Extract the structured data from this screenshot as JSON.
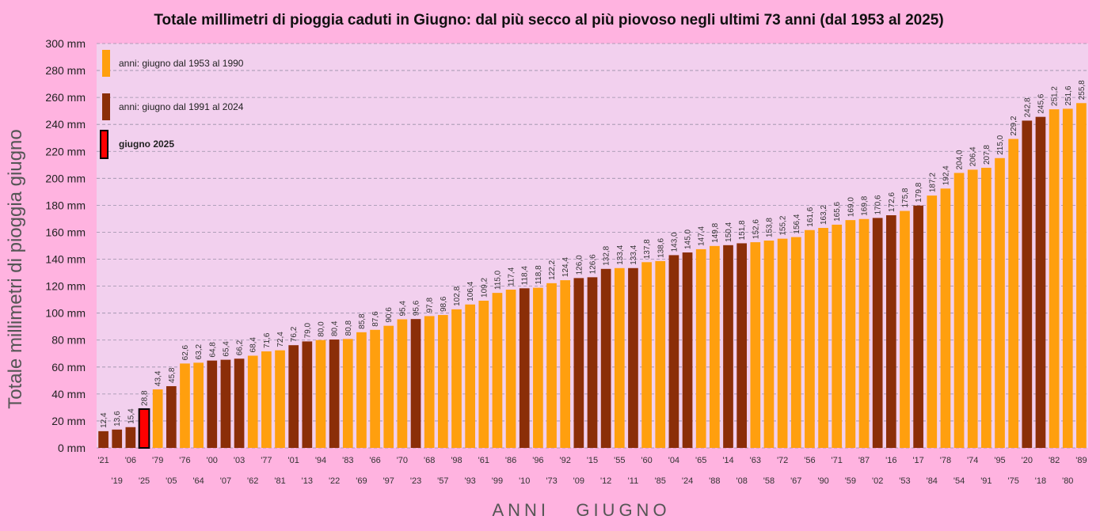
{
  "colors": {
    "page_bg": "#ffb3e0",
    "plot_bg": "#f2d0ee",
    "grid": "#9a8fa8",
    "period_1953_1990": "#ff9f0e",
    "period_1991_2024": "#8b2e08",
    "year_2025_fill": "#ff0000",
    "year_2025_border": "#000000"
  },
  "legend": [
    {
      "key": "period_1953_1990",
      "label": "anni:  giugno  dal 1953 al 1990",
      "bold": false
    },
    {
      "key": "period_1991_2024",
      "label": "anni:  giugno  dal 1991 al 2024",
      "bold": false
    },
    {
      "key": "year_2025",
      "label": "giugno 2025",
      "bold": true
    }
  ],
  "chart_data": {
    "type": "bar",
    "title": "Totale millimetri di pioggia caduti in Giugno: dal più secco al più piovoso negli ultimi 73 anni   (dal 1953 al 2025)",
    "xlabel": "ANNI   GIUGNO",
    "ylabel": "Totale  millimetri  di  pioggia  giugno",
    "ylim": [
      0,
      300
    ],
    "y_ticks": [
      "0 mm",
      "20 mm",
      "40 mm",
      "60 mm",
      "80 mm",
      "100 mm",
      "120 mm",
      "140 mm",
      "160 mm",
      "180 mm",
      "200 mm",
      "220 mm",
      "240 mm",
      "260 mm",
      "280 mm",
      "300 mm"
    ],
    "grid": true,
    "legend_position": "top-left",
    "categories": [
      "'21",
      "'19",
      "'06",
      "'25",
      "'79",
      "'05",
      "'76",
      "'64",
      "'00",
      "'07",
      "'03",
      "'62",
      "'77",
      "'81",
      "'01",
      "'13",
      "'94",
      "'22",
      "'83",
      "'69",
      "'66",
      "'97",
      "'70",
      "'23",
      "'68",
      "'57",
      "'98",
      "'93",
      "'61",
      "'99",
      "'86",
      "'10",
      "'96",
      "'73",
      "'92",
      "'09",
      "'15",
      "'12",
      "'55",
      "'11",
      "'60",
      "'85",
      "'04",
      "'24",
      "'65",
      "'88",
      "'14",
      "'08",
      "'63",
      "'58",
      "'72",
      "'67",
      "'56",
      "'90",
      "'71",
      "'59",
      "'87",
      "'02",
      "'16",
      "'53",
      "'17",
      "'84",
      "'78",
      "'54",
      "'74",
      "'91",
      "'95",
      "'75",
      "'20",
      "'18",
      "'82",
      "'80",
      "'89"
    ],
    "values": [
      12.4,
      13.6,
      15.4,
      28.8,
      43.4,
      45.8,
      62.6,
      63.2,
      64.8,
      65.4,
      66.2,
      68.4,
      71.6,
      72.4,
      76.2,
      79.0,
      80.0,
      80.4,
      80.8,
      85.8,
      87.6,
      90.6,
      95.4,
      95.6,
      97.8,
      98.6,
      102.8,
      106.4,
      109.2,
      115.0,
      117.4,
      118.4,
      118.8,
      122.2,
      124.4,
      126.0,
      126.6,
      132.8,
      133.4,
      133.4,
      137.8,
      138.6,
      143.0,
      145.0,
      147.4,
      149.8,
      150.4,
      151.8,
      152.6,
      153.8,
      155.2,
      156.4,
      161.6,
      163.2,
      165.6,
      169.0,
      169.8,
      170.6,
      172.6,
      175.8,
      179.8,
      187.2,
      192.4,
      204.0,
      206.4,
      207.8,
      215.0,
      229.2,
      242.8,
      245.6,
      251.2,
      251.6,
      255.8
    ],
    "value_labels": [
      "12,4",
      "13,6",
      "15,4",
      "28,8",
      "43,4",
      "45,8",
      "62,6",
      "63,2",
      "64,8",
      "65,4",
      "66,2",
      "68,4",
      "71,6",
      "72,4",
      "76,2",
      "79,0",
      "80,0",
      "80,4",
      "80,8",
      "85,8",
      "87,6",
      "90,6",
      "95,4",
      "95,6",
      "97,8",
      "98,6",
      "102,8",
      "106,4",
      "109,2",
      "115,0",
      "117,4",
      "118,4",
      "118,8",
      "122,2",
      "124,4",
      "126,0",
      "126,6",
      "132,8",
      "133,4",
      "133,4",
      "137,8",
      "138,6",
      "143,0",
      "145,0",
      "147,4",
      "149,8",
      "150,4",
      "151,8",
      "152,6",
      "153,8",
      "155,2",
      "156,4",
      "161,6",
      "163,2",
      "165,6",
      "169,0",
      "169,8",
      "170,6",
      "172,6",
      "175,8",
      "179,8",
      "187,2",
      "192,4",
      "204,0",
      "206,4",
      "207,8",
      "215,0",
      "229,2",
      "242,8",
      "245,6",
      "251,2",
      "251,6",
      "255,8"
    ]
  }
}
